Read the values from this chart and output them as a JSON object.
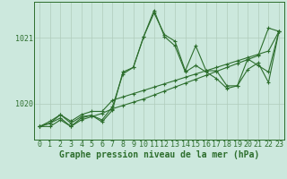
{
  "xlabel": "Graphe pression niveau de la mer (hPa)",
  "bg_color": "#cce8dd",
  "line_color": "#2d6e2d",
  "grid_color": "#b0ccbb",
  "axis_label_color": "#2d6e2d",
  "series": [
    [
      1019.65,
      1019.65,
      1019.75,
      1019.65,
      1019.75,
      1019.8,
      1019.85,
      1019.92,
      1019.97,
      1020.02,
      1020.07,
      1020.13,
      1020.19,
      1020.25,
      1020.31,
      1020.37,
      1020.43,
      1020.49,
      1020.55,
      1020.61,
      1020.67,
      1020.73,
      1021.15,
      1021.1
    ],
    [
      1019.65,
      1019.7,
      1019.78,
      1019.65,
      1019.78,
      1019.82,
      1019.75,
      1019.95,
      1020.45,
      1020.55,
      1021.02,
      1021.38,
      1021.05,
      1020.95,
      1020.5,
      1020.88,
      1020.5,
      1020.5,
      1020.27,
      1020.27,
      1020.52,
      1020.62,
      1020.32,
      1021.1
    ],
    [
      1019.65,
      1019.7,
      1019.83,
      1019.7,
      1019.8,
      1019.82,
      1019.72,
      1019.9,
      1020.48,
      1020.55,
      1021.02,
      1021.42,
      1021.02,
      1020.88,
      1020.48,
      1020.58,
      1020.48,
      1020.38,
      1020.23,
      1020.27,
      1020.68,
      1020.58,
      1020.48,
      1021.1
    ],
    [
      1019.65,
      1019.73,
      1019.83,
      1019.73,
      1019.83,
      1019.88,
      1019.88,
      1020.05,
      1020.1,
      1020.15,
      1020.2,
      1020.25,
      1020.3,
      1020.35,
      1020.4,
      1020.45,
      1020.5,
      1020.55,
      1020.6,
      1020.65,
      1020.7,
      1020.75,
      1020.8,
      1021.1
    ]
  ],
  "ylim": [
    1019.45,
    1021.55
  ],
  "yticks": [
    1020,
    1021
  ],
  "xticks": [
    0,
    1,
    2,
    3,
    4,
    5,
    6,
    7,
    8,
    9,
    10,
    11,
    12,
    13,
    14,
    15,
    16,
    17,
    18,
    19,
    20,
    21,
    22,
    23
  ],
  "marker": "+",
  "markersize": 3.5,
  "linewidth": 0.8,
  "xlabel_fontsize": 7,
  "tick_fontsize": 6,
  "figwidth": 3.2,
  "figheight": 2.0,
  "dpi": 100
}
